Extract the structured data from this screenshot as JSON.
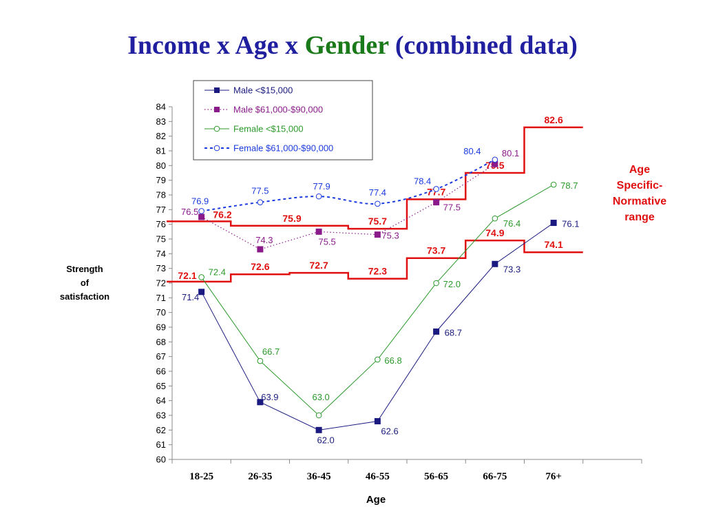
{
  "title": {
    "part1": "Income x Age x ",
    "part2": "Gender",
    "part3": " (combined data)"
  },
  "colors": {
    "title": "#1f1fa0",
    "title_accent": "#1a7a1a",
    "norm": "#e01010",
    "male_low": "#1a1a80",
    "male_high": "#8a1a8a",
    "female_low": "#2a9a2a",
    "female_high": "#1a3adf"
  },
  "side_labels": {
    "ylabel_lines": [
      "Strength",
      "of",
      "satisfaction"
    ],
    "range_lines": [
      "Age",
      "Specific-",
      "Normative",
      "range"
    ]
  },
  "chart_data": {
    "type": "line",
    "xlabel": "Age",
    "ylabel": "Strength of satisfaction",
    "ylim": [
      60,
      84
    ],
    "yticks": [
      60,
      61,
      62,
      63,
      64,
      65,
      66,
      67,
      68,
      69,
      70,
      71,
      72,
      73,
      74,
      75,
      76,
      77,
      78,
      79,
      80,
      81,
      82,
      83,
      84
    ],
    "categories": [
      "18-25",
      "26-35",
      "36-45",
      "46-55",
      "56-65",
      "66-75",
      "76+"
    ],
    "legend_position": "top-center",
    "series": [
      {
        "name": "Male <$15,000",
        "key": "male_low",
        "marker": "square-filled",
        "dash": "solid",
        "values": [
          71.4,
          63.9,
          62.0,
          62.6,
          68.7,
          73.3,
          76.1
        ]
      },
      {
        "name": "Male $61,000-$90,000",
        "key": "male_high",
        "marker": "square-filled",
        "dash": "dotted",
        "values": [
          76.5,
          74.3,
          75.5,
          75.3,
          77.5,
          80.1,
          null
        ]
      },
      {
        "name": "Female <$15,000",
        "key": "female_low",
        "marker": "circle-open",
        "dash": "solid",
        "values": [
          72.4,
          66.7,
          63.0,
          66.8,
          72.0,
          76.4,
          78.7
        ]
      },
      {
        "name": "Female $61,000-$90,000",
        "key": "female_high",
        "marker": "circle-open",
        "dash": "dashed",
        "values": [
          76.9,
          77.5,
          77.9,
          77.4,
          78.4,
          80.4,
          null
        ]
      }
    ],
    "normative_range": {
      "upper": [
        76.2,
        75.9,
        75.9,
        75.7,
        77.7,
        79.5,
        82.6
      ],
      "upper_labels": [
        "76.2",
        "75.9",
        "",
        "75.7",
        "77.7",
        "79.5",
        "82.6"
      ],
      "lower": [
        72.1,
        72.6,
        72.7,
        72.3,
        73.7,
        74.9,
        74.1
      ],
      "lower_labels": [
        "72.1",
        "72.6",
        "72.7",
        "72.3",
        "73.7",
        "74.9",
        "74.1"
      ]
    }
  }
}
